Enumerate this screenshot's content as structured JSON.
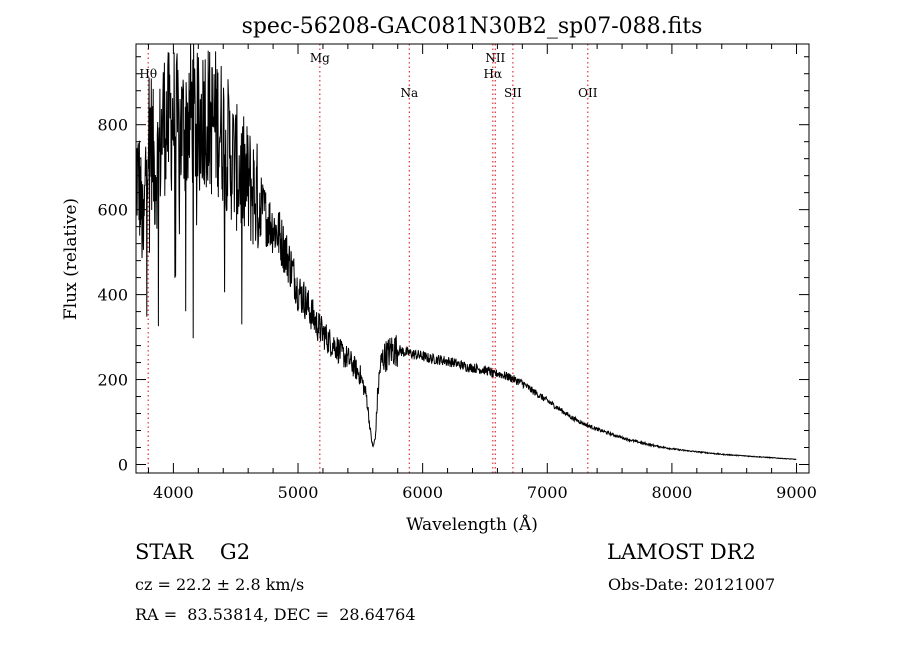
{
  "chart_data": {
    "type": "line",
    "title": "spec-56208-GAC081N30B2_sp07-088.fits",
    "xlabel": "Wavelength (Å)",
    "ylabel": "Flux (relative)",
    "xlim": [
      3700,
      9100
    ],
    "ylim": [
      -20,
      990
    ],
    "xticks": [
      4000,
      5000,
      6000,
      7000,
      8000,
      9000
    ],
    "yticks": [
      0,
      200,
      400,
      600,
      800
    ],
    "series": [
      {
        "x": [
          3700,
          3730,
          3760,
          3790,
          3820,
          3850,
          3880,
          3920,
          3960,
          4000,
          4050,
          4100,
          4150,
          4200,
          4250,
          4300,
          4350,
          4400,
          4450,
          4500,
          4550,
          4600,
          4650,
          4700,
          4750,
          4800,
          4850,
          4900,
          4950,
          5000,
          5050,
          5100,
          5150,
          5200,
          5250,
          5300,
          5350,
          5400,
          5450,
          5500,
          5550,
          5580,
          5600,
          5620,
          5640,
          5660,
          5680,
          5700,
          5720,
          5750,
          5800,
          5850,
          5900,
          5950,
          6000,
          6050,
          6100,
          6150,
          6200,
          6250,
          6300,
          6350,
          6400,
          6450,
          6500,
          6550,
          6563,
          6600,
          6650,
          6700,
          6750,
          6800,
          6850,
          6900,
          6950,
          7000,
          7100,
          7200,
          7300,
          7400,
          7500,
          7600,
          7700,
          7800,
          7900,
          8000,
          8100,
          8200,
          8300,
          8400,
          8500,
          8600,
          8700,
          8800,
          8900,
          9000
        ],
        "y": [
          700,
          650,
          520,
          800,
          780,
          690,
          720,
          810,
          800,
          820,
          780,
          800,
          830,
          790,
          840,
          800,
          810,
          780,
          740,
          700,
          680,
          660,
          640,
          610,
          580,
          560,
          540,
          500,
          460,
          410,
          390,
          360,
          330,
          310,
          290,
          280,
          260,
          250,
          230,
          210,
          160,
          80,
          40,
          60,
          170,
          230,
          250,
          255,
          260,
          270,
          270,
          265,
          262,
          258,
          255,
          250,
          248,
          246,
          243,
          240,
          235,
          230,
          228,
          225,
          222,
          218,
          210,
          215,
          210,
          205,
          198,
          192,
          180,
          170,
          160,
          150,
          130,
          110,
          95,
          83,
          73,
          63,
          55,
          48,
          42,
          37,
          33,
          30,
          27,
          24,
          22,
          20,
          18,
          16,
          14,
          12
        ],
        "style": "noisy-line",
        "color": "#000000"
      }
    ],
    "lines": [
      {
        "label": "Hθ",
        "x": 3798
      },
      {
        "label": "Mg",
        "x": 5175
      },
      {
        "label": "Na",
        "x": 5893
      },
      {
        "label": "NII",
        "x": 6583
      },
      {
        "label": "Hα",
        "x": 6563
      },
      {
        "label": "SII",
        "x": 6724
      },
      {
        "label": "OII",
        "x": 7325
      }
    ],
    "grid": false
  },
  "info": {
    "object": "STAR    G2",
    "cz": "cz = 22.2 ± 2.8 km/s",
    "radec": "RA =  83.53814, DEC =  28.64764",
    "survey": "LAMOST DR2",
    "obsdate": "Obs-Date: 20121007"
  }
}
